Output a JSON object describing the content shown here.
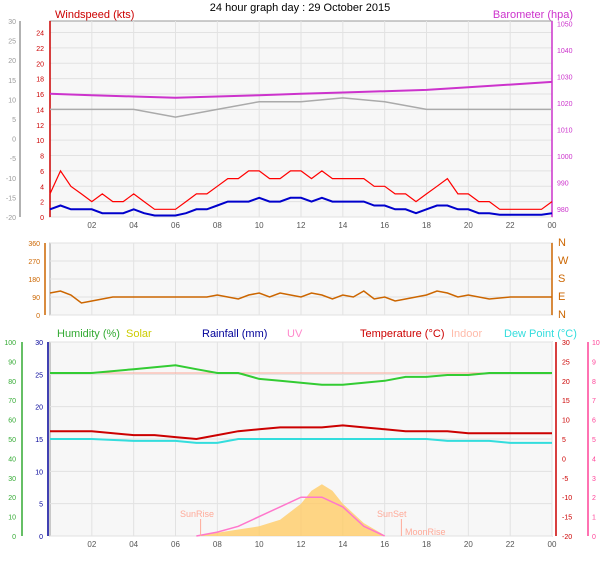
{
  "title": "24 hour graph day : 29 October 2015",
  "chart_data": [
    {
      "type": "line",
      "series": [
        {
          "name": "Windspeed (kts)",
          "color": "#ff0000",
          "x_hours": [
            0,
            0.5,
            1,
            1.5,
            2,
            2.5,
            3,
            3.5,
            4,
            4.5,
            5,
            5.5,
            6,
            6.5,
            7,
            7.5,
            8,
            8.5,
            9,
            9.5,
            10,
            10.5,
            11,
            11.5,
            12,
            12.5,
            13,
            13.5,
            14,
            14.5,
            15,
            15.5,
            16,
            16.5,
            17,
            17.5,
            18,
            18.5,
            19,
            19.5,
            20,
            20.5,
            21,
            21.5,
            22,
            22.5,
            23,
            23.5,
            24
          ],
          "values": [
            3,
            6,
            4,
            3,
            2,
            3,
            2,
            2,
            3,
            2,
            1,
            1,
            1,
            2,
            3,
            3,
            4,
            5,
            5,
            6,
            6,
            5,
            5,
            6,
            6,
            5,
            6,
            5,
            5,
            5,
            5,
            4,
            4,
            3,
            3,
            2,
            3,
            4,
            5,
            3,
            3,
            2,
            2,
            1,
            1,
            1,
            1,
            1,
            2
          ]
        },
        {
          "name": "Wind average",
          "color": "#0000cc",
          "x_hours": [
            0,
            0.5,
            1,
            1.5,
            2,
            2.5,
            3,
            3.5,
            4,
            4.5,
            5,
            5.5,
            6,
            6.5,
            7,
            7.5,
            8,
            8.5,
            9,
            9.5,
            10,
            10.5,
            11,
            11.5,
            12,
            12.5,
            13,
            13.5,
            14,
            14.5,
            15,
            15.5,
            16,
            16.5,
            17,
            17.5,
            18,
            18.5,
            19,
            19.5,
            20,
            20.5,
            21,
            21.5,
            22,
            22.5,
            23,
            23.5,
            24
          ],
          "values": [
            1,
            1.5,
            1,
            1,
            1,
            0.5,
            0.5,
            0.5,
            1,
            0.5,
            0.2,
            0.2,
            0.2,
            0.5,
            1,
            1,
            1.5,
            2,
            2,
            2,
            2.5,
            2,
            2,
            2.5,
            2.5,
            2,
            2.5,
            2,
            2,
            2,
            2,
            1.5,
            1.5,
            1,
            1,
            0.5,
            1,
            1.5,
            1.5,
            1,
            1,
            0.5,
            0.5,
            0.3,
            0.3,
            0.3,
            0.3,
            0.3,
            0.5
          ]
        },
        {
          "name": "Barometer (hpa)",
          "color": "#cc33cc",
          "x_hours": [
            0,
            2,
            4,
            6,
            8,
            10,
            12,
            14,
            16,
            18,
            20,
            22,
            24
          ],
          "values": [
            1023.5,
            1023,
            1022.5,
            1022,
            1022.5,
            1023,
            1023.5,
            1024,
            1024.5,
            1025,
            1026,
            1027,
            1028
          ]
        },
        {
          "name": "Wind gust max",
          "color": "#aaaaaa",
          "x_hours": [
            0,
            2,
            4,
            6,
            8,
            10,
            12,
            14,
            16,
            18,
            20,
            22,
            24
          ],
          "values": [
            14,
            14,
            14,
            13,
            14,
            15,
            15,
            15.5,
            15,
            14,
            14,
            14,
            14
          ]
        }
      ],
      "y_left": {
        "label": "Windspeed (kts)",
        "ticks": [
          0,
          2,
          4,
          6,
          8,
          10,
          12,
          14,
          16,
          18,
          20,
          22,
          24
        ],
        "ylim": [
          0,
          25.5
        ]
      },
      "y_right": {
        "label": "Barometer (hpa)",
        "ticks": [
          980,
          990,
          1000,
          1010,
          1020,
          1030,
          1040,
          1050
        ],
        "ylim": [
          977,
          1051
        ]
      },
      "y_far_left_ticks": [
        "30",
        "25",
        "20",
        "15",
        "10",
        "5",
        "0",
        "-5",
        "-10",
        "-15",
        "-20"
      ],
      "x_ticks": [
        "02",
        "04",
        "06",
        "08",
        "10",
        "12",
        "14",
        "16",
        "18",
        "20",
        "22",
        "00"
      ]
    },
    {
      "type": "line",
      "series": [
        {
          "name": "Wind direction",
          "color": "#cc6600",
          "x_hours": [
            0,
            0.5,
            1,
            1.5,
            2,
            3,
            4,
            6,
            7,
            7.5,
            8,
            8.5,
            9,
            9.5,
            10,
            10.5,
            11,
            11.5,
            12,
            12.5,
            13,
            13.5,
            14,
            14.5,
            15,
            15.5,
            16,
            16.5,
            17,
            17.5,
            18,
            18.5,
            19,
            19.5,
            20,
            21,
            22,
            23,
            24
          ],
          "values": [
            110,
            120,
            100,
            60,
            70,
            90,
            90,
            90,
            90,
            90,
            100,
            90,
            80,
            100,
            110,
            90,
            110,
            100,
            90,
            110,
            100,
            80,
            100,
            90,
            120,
            80,
            90,
            70,
            80,
            90,
            100,
            120,
            110,
            90,
            100,
            80,
            90,
            90,
            90
          ]
        }
      ],
      "y_left_ticks": [
        0,
        90,
        180,
        270,
        360
      ],
      "y_right_labels": [
        "N",
        "W",
        "S",
        "E",
        "N"
      ]
    },
    {
      "type": "line",
      "series": [
        {
          "name": "Humidity (%)",
          "color": "#33cc33",
          "x_hours": [
            0,
            2,
            4,
            5,
            6,
            7,
            8,
            9,
            10,
            11,
            12,
            13,
            14,
            15,
            16,
            17,
            18,
            19,
            20,
            21,
            22,
            23,
            24
          ],
          "values": [
            84,
            84,
            86,
            87,
            88,
            86,
            84,
            84,
            81,
            80,
            79,
            78,
            78,
            79,
            80,
            82,
            82,
            83,
            83,
            84,
            84,
            84,
            84
          ]
        },
        {
          "name": "Temperature (°C)",
          "color": "#cc0000",
          "x_hours": [
            0,
            2,
            4,
            5,
            6,
            7,
            8,
            9,
            10,
            11,
            12,
            13,
            14,
            15,
            16,
            17,
            18,
            19,
            20,
            21,
            22,
            23,
            24
          ],
          "values": [
            7,
            7,
            6,
            6,
            5.5,
            5,
            6,
            7,
            7.5,
            8,
            8,
            8,
            8.5,
            8,
            7.5,
            7,
            7,
            7,
            6.5,
            6.5,
            6.5,
            6.5,
            6.5
          ]
        },
        {
          "name": "Dew Point (°C)",
          "color": "#33dddd",
          "x_hours": [
            0,
            2,
            4,
            5,
            6,
            7,
            8,
            9,
            10,
            11,
            12,
            13,
            14,
            15,
            16,
            17,
            18,
            19,
            20,
            21,
            22,
            23,
            24
          ],
          "values": [
            5,
            5,
            4.5,
            4.5,
            4.5,
            4,
            4,
            5,
            5,
            5,
            5,
            5,
            5,
            5,
            5,
            5,
            5,
            4.5,
            4.5,
            4.5,
            4,
            4,
            4
          ]
        },
        {
          "name": "Indoor",
          "color": "#ffaa99",
          "x_hours": [
            0,
            24
          ],
          "values": [
            22,
            22
          ]
        },
        {
          "name": "Solar",
          "color": "#ffcc66",
          "x_hours": [
            7,
            8,
            9,
            10,
            11,
            12,
            12.5,
            13,
            13.5,
            14,
            15,
            16
          ],
          "values": [
            0.1,
            0.5,
            1,
            1.5,
            2.5,
            5,
            7,
            8,
            7,
            5,
            2,
            0.1
          ]
        },
        {
          "name": "UV",
          "color": "#ff77cc",
          "x_hours": [
            7,
            8,
            9,
            10,
            11,
            12,
            13,
            14,
            15,
            16
          ],
          "values": [
            0,
            0.2,
            0.5,
            1,
            1.5,
            2,
            2,
            1.5,
            0.5,
            0
          ]
        }
      ],
      "y_left_humidity_ticks": [
        0,
        10,
        20,
        30,
        40,
        50,
        60,
        70,
        80,
        90,
        100
      ],
      "y_left_rain_ticks": [
        0,
        5,
        10,
        15,
        20,
        25,
        30
      ],
      "y_right_temp_ticks": [
        -20,
        -15,
        -10,
        -5,
        0,
        5,
        10,
        15,
        20,
        25,
        30
      ],
      "y_right_uv_ticks": [
        0,
        1,
        2,
        3,
        4,
        5,
        6,
        7,
        8,
        9,
        10
      ],
      "annotations": [
        "SunRise",
        "SunSet",
        "MoonRise"
      ],
      "x_ticks": [
        "02",
        "04",
        "06",
        "08",
        "10",
        "12",
        "14",
        "16",
        "18",
        "20",
        "22",
        "00"
      ]
    }
  ],
  "labels": {
    "windspeed": "Windspeed (kts)",
    "barometer": "Barometer (hpa)",
    "humidity": "Humidity (%)",
    "solar": "Solar",
    "rainfall": "Rainfall (mm)",
    "uv": "UV",
    "temperature": "Temperature (°C)",
    "indoor": "Indoor",
    "dewpoint": "Dew Point (°C)",
    "sunrise": "SunRise",
    "sunset": "SunSet",
    "moonrise": "MoonRise"
  },
  "colors": {
    "plot_bg": "#f7f7f7",
    "grid": "#e2e2e2",
    "axis_text": "#555555",
    "wind_axis": "#cc0000",
    "baro_axis": "#cc33cc",
    "dir_axis": "#cc6600",
    "hum_axis": "#33aa33",
    "rain_axis": "#000099",
    "temp_axis": "#cc0000",
    "uv_axis": "#ff4499"
  }
}
